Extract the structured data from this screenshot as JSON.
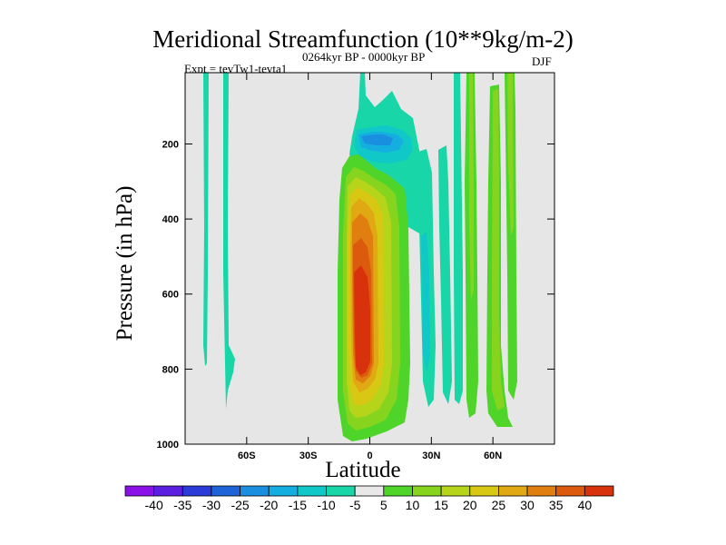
{
  "chart_data": {
    "type": "contour",
    "title": "Meridional Streamfunction (10**9kg/m-2)",
    "experiment": "Expt = tevTw1-tevta1",
    "period": "0264kyr BP - 0000kyr BP",
    "season": "DJF",
    "xlabel": "Latitude",
    "ylabel": "Pressure (in hPa)",
    "xlim": [
      -90,
      90
    ],
    "ylim": [
      1000,
      10
    ],
    "x_ticks": [
      {
        "value": -60,
        "label": "60S"
      },
      {
        "value": -30,
        "label": "30S"
      },
      {
        "value": 0,
        "label": "0"
      },
      {
        "value": 30,
        "label": "30N"
      },
      {
        "value": 60,
        "label": "60N"
      }
    ],
    "y_ticks": [
      {
        "value": 200,
        "label": "200"
      },
      {
        "value": 400,
        "label": "400"
      },
      {
        "value": 600,
        "label": "600"
      },
      {
        "value": 800,
        "label": "800"
      },
      {
        "value": 1000,
        "label": "1000"
      }
    ],
    "colorbar": {
      "levels": [
        -40,
        -35,
        -30,
        -25,
        -20,
        -15,
        -10,
        -5,
        5,
        10,
        15,
        20,
        25,
        30,
        35,
        40
      ],
      "labels": [
        "-40",
        "-35",
        "-30",
        "-25",
        "-20",
        "-15",
        "-10",
        "-5",
        "5",
        "10",
        "15",
        "20",
        "25",
        "30",
        "35",
        "40"
      ],
      "colors": [
        "#8a12e8",
        "#5a1fe0",
        "#2a3bd8",
        "#1f63d8",
        "#1a8fe0",
        "#15aee0",
        "#10c8c8",
        "#18d6a8",
        "#e8e8e8",
        "#4fd42a",
        "#86d41e",
        "#b6d41a",
        "#d8c814",
        "#e0a812",
        "#e07e10",
        "#dc5a0e",
        "#d8320c"
      ]
    },
    "background": "#e6e6e6",
    "regions": [
      {
        "name": "sh-narrow-band-1",
        "lat": [
          -78,
          -76
        ],
        "p": [
          10,
          780
        ],
        "value": -7
      },
      {
        "name": "sh-narrow-band-2",
        "lat": [
          -70,
          -67
        ],
        "p": [
          10,
          900
        ],
        "value": -7
      },
      {
        "name": "tropical-upper-cell",
        "lat": [
          -6,
          16
        ],
        "p": [
          60,
          300
        ],
        "value": -10
      },
      {
        "name": "tropical-upper-core",
        "lat": [
          -3,
          7
        ],
        "p": [
          160,
          210
        ],
        "value": -17
      },
      {
        "name": "tropical-lower-cell",
        "lat": [
          -13,
          10
        ],
        "p": [
          220,
          990
        ],
        "value": 38
      },
      {
        "name": "nh-band-30n",
        "lat": [
          22,
          30
        ],
        "p": [
          150,
          960
        ],
        "value": -7
      },
      {
        "name": "nh-band-45n",
        "lat": [
          40,
          48
        ],
        "p": [
          10,
          950
        ],
        "value": 7
      },
      {
        "name": "nh-band-55n",
        "lat": [
          52,
          60
        ],
        "p": [
          10,
          980
        ],
        "value": 12
      }
    ]
  }
}
